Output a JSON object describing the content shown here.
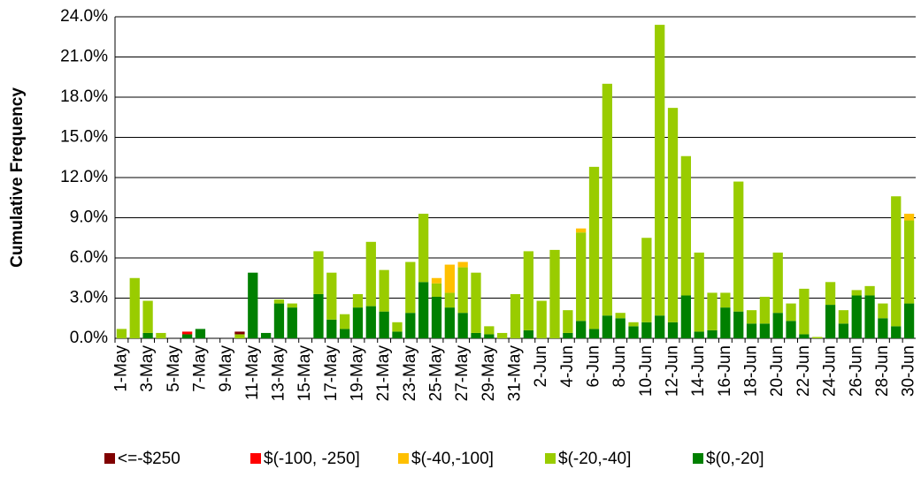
{
  "chart_data": {
    "type": "stacked_bar",
    "y_label": "Cumulative Frequency",
    "categories": [
      "1-May",
      null,
      "3-May",
      null,
      "5-May",
      null,
      "7-May",
      null,
      "9-May",
      null,
      "11-May",
      null,
      "13-May",
      null,
      "15-May",
      null,
      "17-May",
      null,
      "19-May",
      null,
      "21-May",
      null,
      "23-May",
      null,
      "25-May",
      null,
      "27-May",
      null,
      "29-May",
      null,
      "31-May",
      null,
      "2-Jun",
      null,
      "4-Jun",
      null,
      "6-Jun",
      null,
      "8-Jun",
      null,
      "10-Jun",
      null,
      "12-Jun",
      null,
      "14-Jun",
      null,
      "16-Jun",
      null,
      "18-Jun",
      null,
      "20-Jun",
      null,
      "22-Jun",
      null,
      "24-Jun",
      null,
      "26-Jun",
      null,
      "28-Jun",
      null,
      "30-Jun"
    ],
    "series": [
      {
        "name": "<=-$250",
        "color": "#800000",
        "values": [
          0,
          0,
          0,
          0,
          0,
          0,
          0,
          0,
          0,
          0.2,
          0,
          0,
          0,
          0,
          0,
          0,
          0,
          0,
          0,
          0,
          0,
          0,
          0,
          0,
          0,
          0,
          0,
          0,
          0,
          0,
          0,
          0,
          0,
          0,
          0,
          0,
          0,
          0,
          0,
          0,
          0,
          0,
          0,
          0,
          0,
          0,
          0,
          0,
          0,
          0,
          0,
          0,
          0,
          0,
          0,
          0,
          0,
          0,
          0,
          0,
          0
        ]
      },
      {
        "name": "$(-100, -250]",
        "color": "#ff0000",
        "values": [
          0,
          0,
          0,
          0,
          0,
          0.2,
          0,
          0,
          0,
          0,
          0,
          0,
          0,
          0,
          0,
          0,
          0,
          0,
          0,
          0,
          0,
          0,
          0,
          0,
          0,
          0,
          0,
          0,
          0,
          0,
          0,
          0,
          0,
          0,
          0,
          0,
          0,
          0,
          0,
          0,
          0,
          0,
          0,
          0,
          0,
          0,
          0,
          0,
          0,
          0,
          0,
          0,
          0,
          0,
          0,
          0,
          0,
          0,
          0,
          0,
          0
        ]
      },
      {
        "name": "$(-40,-100]",
        "color": "#ffc000",
        "values": [
          0,
          0,
          0,
          0,
          0,
          0,
          0,
          0,
          0,
          0,
          0,
          0,
          0,
          0,
          0,
          0,
          0,
          0,
          0,
          0,
          0,
          0,
          0,
          0,
          0.4,
          2.1,
          0.4,
          0,
          0,
          0,
          0,
          0,
          0,
          0,
          0,
          0.3,
          0,
          0,
          0,
          0,
          0,
          0,
          0,
          0,
          0,
          0,
          0,
          0,
          0,
          0,
          0,
          0,
          0,
          0,
          0,
          0,
          0,
          0,
          0,
          0,
          0.5
        ]
      },
      {
        "name": "$(-20,-40]",
        "color": "#99cc00",
        "values": [
          0.7,
          4.5,
          2.4,
          0.4,
          0,
          0,
          0,
          0,
          0,
          0.3,
          0,
          0,
          0.3,
          0.3,
          0,
          3.2,
          3.5,
          1.1,
          1.0,
          4.8,
          3.1,
          0.7,
          3.8,
          5.1,
          1.0,
          1.1,
          3.4,
          4.5,
          0.6,
          0.4,
          3.3,
          5.9,
          2.8,
          6.6,
          1.7,
          6.6,
          12.1,
          17.3,
          0.4,
          0.3,
          6.3,
          21.7,
          16.0,
          10.4,
          5.9,
          2.8,
          1.1,
          9.7,
          1.0,
          2.0,
          4.5,
          1.3,
          3.4,
          0.1,
          1.7,
          1.0,
          0.4,
          0.7,
          1.1,
          9.7,
          6.2
        ]
      },
      {
        "name": "$(0,-20]",
        "color": "#008000",
        "values": [
          0,
          0,
          0.4,
          0,
          0,
          0.3,
          0.7,
          0,
          0,
          0,
          4.9,
          0.4,
          2.6,
          2.3,
          0,
          3.3,
          1.4,
          0.7,
          2.3,
          2.4,
          2.0,
          0.5,
          1.9,
          4.2,
          3.1,
          2.3,
          1.9,
          0.4,
          0.3,
          0,
          0,
          0.6,
          0,
          0,
          0.4,
          1.3,
          0.7,
          1.7,
          1.5,
          0.9,
          1.2,
          1.7,
          1.2,
          3.2,
          0.5,
          0.6,
          2.3,
          2.0,
          1.1,
          1.1,
          1.9,
          1.3,
          0.3,
          0,
          2.5,
          1.1,
          3.2,
          3.2,
          1.5,
          0.9,
          2.6
        ]
      }
    ],
    "ylim": [
      0,
      24
    ],
    "yticks": [
      {
        "value": 0,
        "label": "0.0%"
      },
      {
        "value": 3,
        "label": "3.0%"
      },
      {
        "value": 6,
        "label": "6.0%"
      },
      {
        "value": 9,
        "label": "9.0%"
      },
      {
        "value": 12,
        "label": "12.0%"
      },
      {
        "value": 15,
        "label": "15.0%"
      },
      {
        "value": 18,
        "label": "18.0%"
      },
      {
        "value": 21,
        "label": "21.0%"
      },
      {
        "value": 24,
        "label": "24.0%"
      }
    ],
    "grid": true,
    "legend": "bottom"
  }
}
